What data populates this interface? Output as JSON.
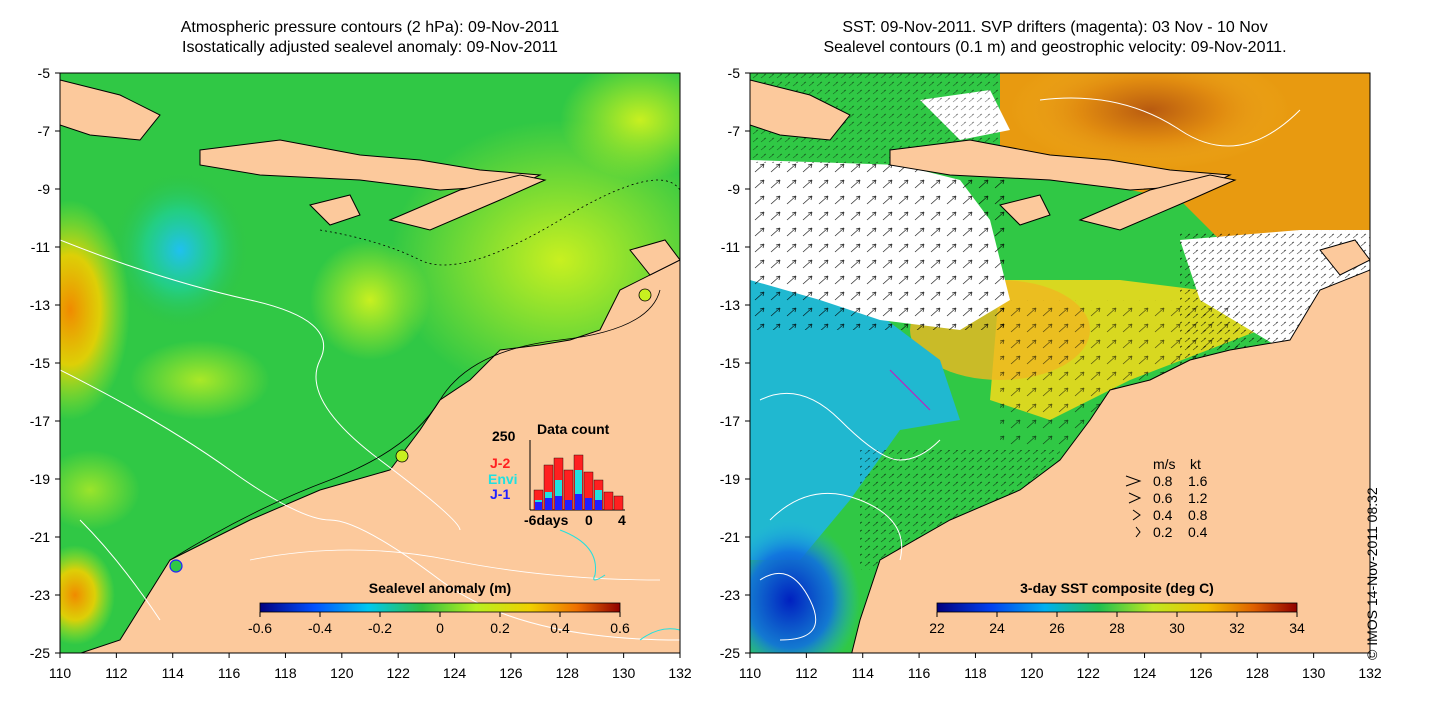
{
  "left_panel": {
    "title_line1": "Atmospheric pressure contours (2 hPa): 09-Nov-2011",
    "title_line2": "Isostatically adjusted sealevel anomaly: 09-Nov-2011",
    "x_ticks": [
      "110",
      "112",
      "114",
      "116",
      "118",
      "120",
      "122",
      "124",
      "126",
      "128",
      "130",
      "132"
    ],
    "y_ticks": [
      "-5",
      "-7",
      "-9",
      "-11",
      "-13",
      "-15",
      "-17",
      "-19",
      "-21",
      "-23",
      "-25"
    ],
    "colorbar": {
      "label": "Sealevel anomaly (m)",
      "ticks": [
        "-0.6",
        "-0.4",
        "-0.2",
        "0",
        "0.2",
        "0.4",
        "0.6"
      ]
    },
    "data_count": {
      "title": "Data count",
      "ymax_label": "250",
      "legend": [
        {
          "label": "J-2",
          "color": "#ff2020"
        },
        {
          "label": "Envi",
          "color": "#20e0e0"
        },
        {
          "label": "J-1",
          "color": "#2020ff"
        }
      ],
      "x_labels": [
        "-6days",
        "0",
        "4"
      ]
    }
  },
  "right_panel": {
    "title_line1": "SST: 09-Nov-2011. SVP drifters (magenta): 03 Nov - 10 Nov",
    "title_line2": "Sealevel contours (0.1 m) and geostrophic velocity: 09-Nov-2011.",
    "x_ticks": [
      "110",
      "112",
      "114",
      "116",
      "118",
      "120",
      "122",
      "124",
      "126",
      "128",
      "130",
      "132"
    ],
    "y_ticks": [
      "-5",
      "-7",
      "-9",
      "-11",
      "-13",
      "-15",
      "-17",
      "-19",
      "-21",
      "-23",
      "-25"
    ],
    "colorbar": {
      "label": "3-day SST composite (deg C)",
      "ticks": [
        "22",
        "24",
        "26",
        "28",
        "30",
        "32",
        "34"
      ]
    },
    "velocity_legend": {
      "header_ms": "m/s",
      "header_kt": "kt",
      "rows": [
        {
          "ms": "0.8",
          "kt": "1.6"
        },
        {
          "ms": "0.6",
          "kt": "1.2"
        },
        {
          "ms": "0.4",
          "kt": "0.8"
        },
        {
          "ms": "0.2",
          "kt": "0.4"
        }
      ]
    }
  },
  "copyright": "© IMOS 14-Nov-2011 08:32",
  "colors": {
    "land": "#fcc99c",
    "sla_base": "#2fca3a",
    "coast": "#000000"
  }
}
